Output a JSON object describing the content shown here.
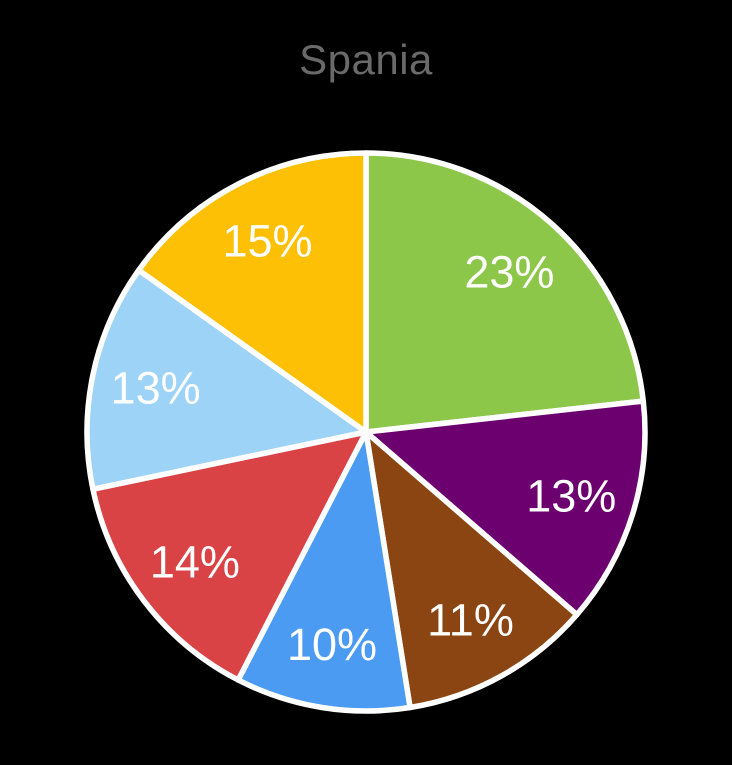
{
  "chart_data": {
    "type": "pie",
    "title": "Spania",
    "title_color": "#6A6A6A",
    "legend": "none",
    "start_angle_deg": 0,
    "direction": "clockwise",
    "label_color": "#FFFFFF",
    "slice_border_color": "#FFFFFF",
    "background_color": "#000000",
    "slices": [
      {
        "label": "23%",
        "value": 23,
        "color": "#8DC74A",
        "name": "green"
      },
      {
        "label": "13%",
        "value": 13,
        "color": "#6C006E",
        "name": "purple"
      },
      {
        "label": "11%",
        "value": 11,
        "color": "#8B4513",
        "name": "brown"
      },
      {
        "label": "10%",
        "value": 10,
        "color": "#4B9BF2",
        "name": "blue"
      },
      {
        "label": "14%",
        "value": 14,
        "color": "#D94345",
        "name": "red"
      },
      {
        "label": "13%",
        "value": 13,
        "color": "#9ED3F8",
        "name": "light-blue"
      },
      {
        "label": "15%",
        "value": 15,
        "color": "#FDC005",
        "name": "gold"
      }
    ]
  }
}
